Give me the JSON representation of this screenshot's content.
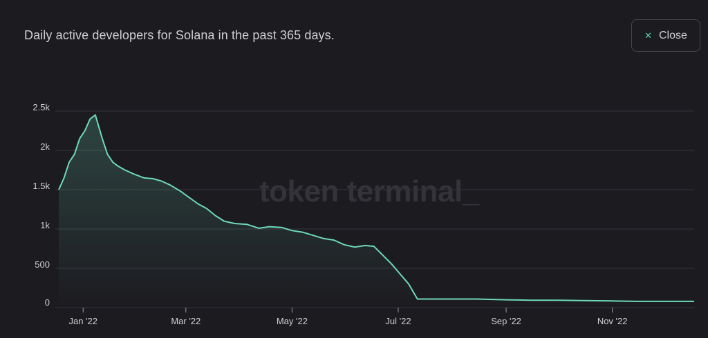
{
  "header": {
    "title": "Daily active developers for Solana in the past 365 days.",
    "close_label": "Close",
    "close_icon": "close-icon"
  },
  "watermark": "token terminal_",
  "colors": {
    "background": "#1c1b20",
    "line": "#6ed9b9",
    "grid": "#36353b",
    "text": "#d0d0d4",
    "watermark": "#34333a"
  },
  "chart_data": {
    "type": "area",
    "title": "Daily active developers for Solana in the past 365 days.",
    "xlabel": "",
    "ylabel": "",
    "ylim": [
      0,
      2500
    ],
    "xlim": [
      "2021-12-18",
      "2022-12-18"
    ],
    "y_ticks": [
      {
        "value": 0,
        "label": "0"
      },
      {
        "value": 500,
        "label": "500"
      },
      {
        "value": 1000,
        "label": "1k"
      },
      {
        "value": 1500,
        "label": "1.5k"
      },
      {
        "value": 2000,
        "label": "2k"
      },
      {
        "value": 2500,
        "label": "2.5k"
      }
    ],
    "x_ticks": [
      {
        "date": "2022-01-01",
        "label": "Jan '22"
      },
      {
        "date": "2022-03-01",
        "label": "Mar '22"
      },
      {
        "date": "2022-05-01",
        "label": "May '22"
      },
      {
        "date": "2022-07-01",
        "label": "Jul '22"
      },
      {
        "date": "2022-09-01",
        "label": "Sep '22"
      },
      {
        "date": "2022-11-01",
        "label": "Nov '22"
      }
    ],
    "grid": true,
    "series": [
      {
        "x": [
          "2021-12-18",
          "2021-12-21",
          "2021-12-24",
          "2021-12-27",
          "2021-12-30",
          "2022-01-02",
          "2022-01-05",
          "2022-01-08",
          "2022-01-10",
          "2022-01-12",
          "2022-01-15",
          "2022-01-18",
          "2022-01-21",
          "2022-01-25",
          "2022-01-30",
          "2022-02-05",
          "2022-02-10",
          "2022-02-15",
          "2022-02-20",
          "2022-02-26",
          "2022-03-03",
          "2022-03-08",
          "2022-03-13",
          "2022-03-18",
          "2022-03-23",
          "2022-03-29",
          "2022-04-05",
          "2022-04-12",
          "2022-04-18",
          "2022-04-25",
          "2022-05-01",
          "2022-05-07",
          "2022-05-13",
          "2022-05-19",
          "2022-05-25",
          "2022-05-31",
          "2022-06-06",
          "2022-06-12",
          "2022-06-17",
          "2022-06-22",
          "2022-06-27",
          "2022-07-02",
          "2022-07-07",
          "2022-07-12",
          "2022-07-17",
          "2022-07-22",
          "2022-08-01",
          "2022-08-15",
          "2022-09-01",
          "2022-09-15",
          "2022-10-01",
          "2022-10-15",
          "2022-11-01",
          "2022-11-15",
          "2022-12-01",
          "2022-12-18"
        ],
        "values": [
          1500,
          1650,
          1850,
          1950,
          2150,
          2250,
          2400,
          2450,
          2300,
          2150,
          1950,
          1850,
          1800,
          1750,
          1700,
          1650,
          1640,
          1610,
          1560,
          1480,
          1400,
          1320,
          1260,
          1170,
          1100,
          1070,
          1060,
          1010,
          1030,
          1020,
          980,
          960,
          920,
          880,
          860,
          800,
          770,
          790,
          780,
          670,
          560,
          430,
          300,
          110,
          110,
          110,
          110,
          110,
          100,
          95,
          95,
          90,
          85,
          80,
          80,
          80
        ]
      }
    ]
  }
}
